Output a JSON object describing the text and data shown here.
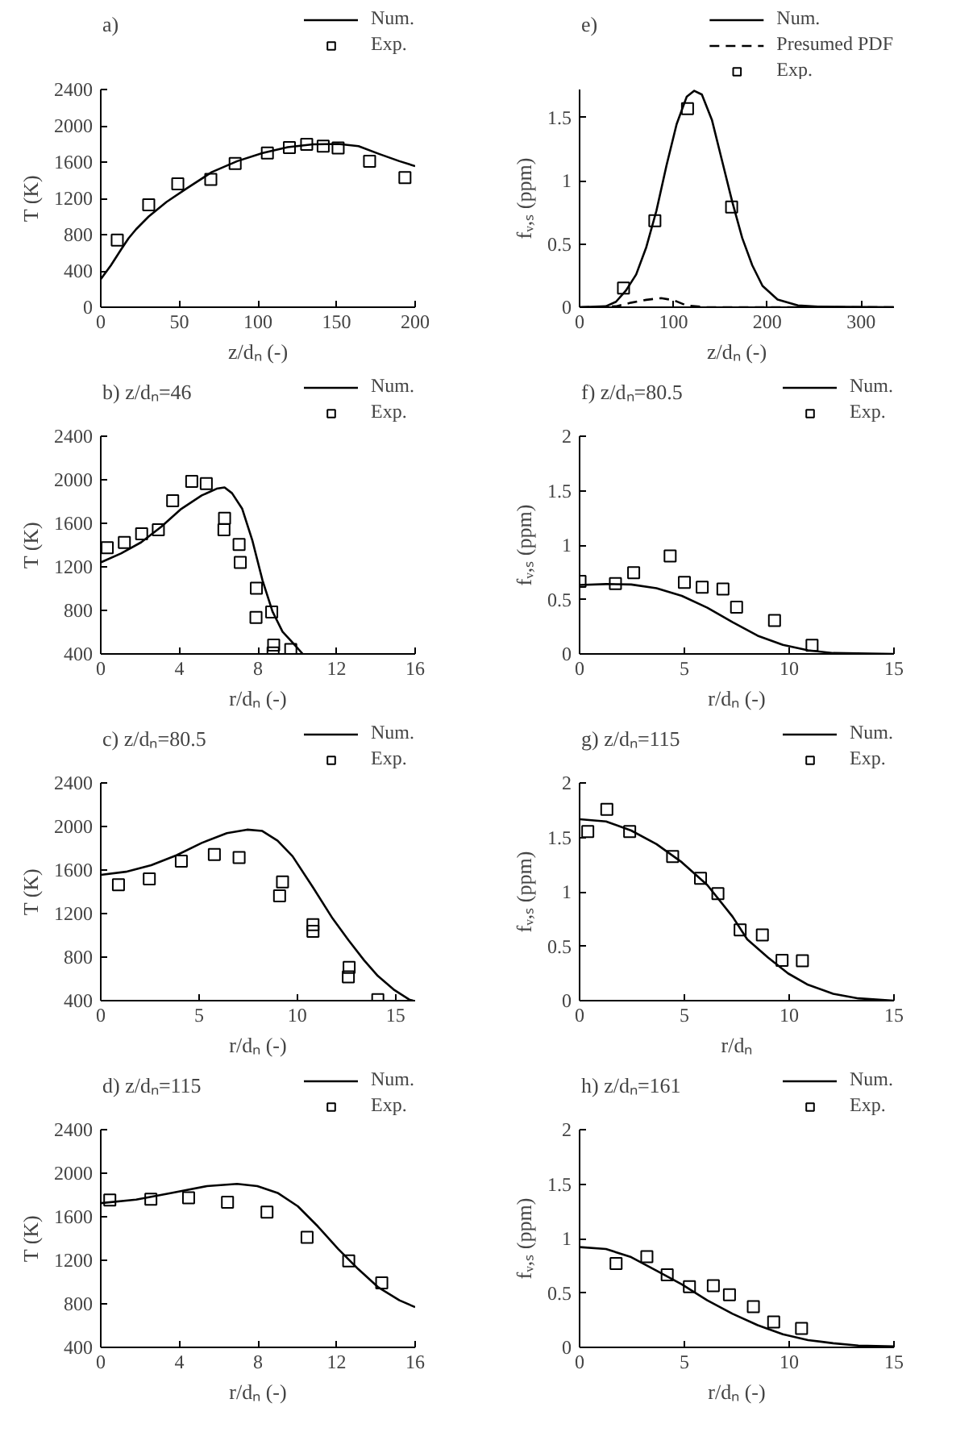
{
  "chart_data": [
    {
      "type": "line",
      "title": "a)",
      "xlabel": "z/dₙ (-)",
      "ylabel": "T (K)",
      "xlim": [
        0,
        200
      ],
      "xticks": [
        0,
        50,
        100,
        150,
        200
      ],
      "ylim": [
        0,
        2400
      ],
      "yticks": [
        0,
        400,
        800,
        1200,
        1600,
        2000,
        2400
      ],
      "grid": false,
      "legend": "top right",
      "series": [
        {
          "name": "Num.",
          "type": "line",
          "color": "#000000",
          "line_style": "solid",
          "x": [
            0,
            6.4,
            12.9,
            17.7,
            22.5,
            30.5,
            41.8,
            54.7,
            70.7,
            86.8,
            103,
            119,
            135,
            151,
            164,
            177,
            190,
            200
          ],
          "values": [
            310,
            460,
            635,
            760,
            860,
            1000,
            1160,
            1310,
            1490,
            1610,
            1700,
            1765,
            1795,
            1800,
            1775,
            1690,
            1610,
            1555
          ]
        },
        {
          "name": "Exp.",
          "type": "scatter",
          "color": "#000000",
          "marker": "square",
          "x": [
            10.5,
            30.5,
            49,
            70,
            85.5,
            106,
            120,
            131,
            141.5,
            151,
            171,
            193.5
          ],
          "values": [
            740,
            1130,
            1360,
            1410,
            1585,
            1700,
            1760,
            1795,
            1775,
            1755,
            1610,
            1430
          ]
        }
      ]
    },
    {
      "type": "line",
      "title": "b)   z/dₙ=46",
      "xlabel": "r/dₙ (-)",
      "ylabel": "T (K)",
      "xlim": [
        0,
        16
      ],
      "xticks": [
        0,
        4,
        8,
        12,
        16
      ],
      "ylim": [
        400,
        2400
      ],
      "yticks": [
        400,
        800,
        1200,
        1600,
        2000,
        2400
      ],
      "grid": false,
      "legend": "top right",
      "series": [
        {
          "name": "Num.",
          "type": "line",
          "color": "#000000",
          "line_style": "solid",
          "x": [
            0,
            1.03,
            2.06,
            3.08,
            4.1,
            5.14,
            5.9,
            6.3,
            6.68,
            7.2,
            7.71,
            8.23,
            8.74,
            9.25,
            9.77,
            10.28
          ],
          "values": [
            1241,
            1323,
            1426,
            1569,
            1733,
            1856,
            1918,
            1930,
            1877,
            1733,
            1446,
            1077,
            790,
            605,
            503,
            400
          ]
        },
        {
          "name": "Exp.",
          "type": "scatter",
          "color": "#000000",
          "marker": "square",
          "x": [
            0.33,
            1.2,
            2.08,
            2.93,
            3.66,
            4.63,
            5.37,
            6.3,
            6.27,
            7.04,
            7.1,
            7.92,
            7.9,
            8.7,
            8.8,
            8.77,
            9.67
          ],
          "values": [
            1376,
            1425,
            1503,
            1540,
            1807,
            1985,
            1965,
            1647,
            1540,
            1405,
            1241,
            1003,
            736,
            786,
            482,
            410,
            441
          ]
        }
      ]
    },
    {
      "type": "line",
      "title": "c)   z/dₙ=80.5",
      "xlabel": "r/dₙ (-)",
      "ylabel": "T (K)",
      "xlim": [
        0,
        16
      ],
      "xticks": [
        0,
        5,
        10,
        15
      ],
      "ylim": [
        400,
        2400
      ],
      "yticks": [
        400,
        800,
        1200,
        1600,
        2000,
        2400
      ],
      "grid": false,
      "legend": "top right",
      "series": [
        {
          "name": "Num.",
          "type": "line",
          "color": "#000000",
          "line_style": "solid",
          "x": [
            0,
            1.28,
            2.57,
            3.85,
            5.14,
            6.42,
            7.45,
            8.22,
            9.0,
            9.76,
            10.8,
            11.8,
            12.6,
            13.4,
            14.1,
            14.9,
            15.7,
            15.9
          ],
          "values": [
            1555,
            1584,
            1645,
            1735,
            1849,
            1939,
            1971,
            1959,
            1869,
            1727,
            1441,
            1155,
            957,
            771,
            627,
            503,
            410,
            400
          ]
        },
        {
          "name": "Exp.",
          "type": "scatter",
          "color": "#000000",
          "marker": "square",
          "x": [
            0.9,
            2.47,
            4.1,
            5.78,
            7.04,
            9.25,
            9.1,
            10.8,
            10.8,
            12.64,
            12.6,
            14.1
          ],
          "values": [
            1465,
            1518,
            1682,
            1743,
            1714,
            1490,
            1363,
            1098,
            1037,
            705,
            618,
            410
          ]
        }
      ]
    },
    {
      "type": "line",
      "title": "d)   z/dₙ=115",
      "xlabel": "r/dₙ (-)",
      "ylabel": "T (K)",
      "xlim": [
        0,
        16
      ],
      "xticks": [
        0,
        4,
        8,
        12,
        16
      ],
      "ylim": [
        400,
        2400
      ],
      "yticks": [
        400,
        800,
        1200,
        1600,
        2000,
        2400
      ],
      "grid": false,
      "legend": "top right",
      "series": [
        {
          "name": "Num.",
          "type": "line",
          "color": "#000000",
          "line_style": "solid",
          "x": [
            0,
            1.8,
            3.6,
            5.4,
            6.94,
            7.97,
            9.0,
            10.03,
            11.05,
            12.08,
            13.1,
            14.1,
            15.2,
            16
          ],
          "values": [
            1725,
            1758,
            1819,
            1881,
            1902,
            1881,
            1819,
            1696,
            1511,
            1305,
            1120,
            955,
            832,
            770
          ]
        },
        {
          "name": "Exp.",
          "type": "scatter",
          "color": "#000000",
          "marker": "square",
          "x": [
            0.46,
            2.55,
            4.47,
            6.45,
            8.46,
            10.5,
            12.62,
            14.3
          ],
          "values": [
            1754,
            1762,
            1774,
            1733,
            1643,
            1412,
            1194,
            993
          ]
        }
      ]
    },
    {
      "type": "line",
      "title": "e)",
      "xlabel": "z/dₙ (-)",
      "ylabel": "fᵥ,ₛ (ppm)",
      "xlim": [
        0,
        335
      ],
      "xticks": [
        0,
        100,
        200,
        300
      ],
      "ylim": [
        0,
        1.72
      ],
      "yticks": [
        0,
        0.5,
        1,
        1.5
      ],
      "grid": false,
      "legend": "top right",
      "series": [
        {
          "name": "Num.",
          "type": "line",
          "color": "#000000",
          "line_style": "solid",
          "x": [
            0,
            28,
            38.8,
            49.5,
            60.3,
            71.1,
            81.9,
            92.6,
            103.4,
            114.1,
            122.2,
            130.3,
            141,
            151.8,
            162.6,
            173.3,
            184,
            194.9,
            211,
            232.6,
            254,
            335
          ],
          "values": [
            0,
            0.007,
            0.043,
            0.133,
            0.259,
            0.475,
            0.763,
            1.12,
            1.446,
            1.662,
            1.71,
            1.68,
            1.48,
            1.158,
            0.835,
            0.547,
            0.331,
            0.169,
            0.061,
            0.014,
            0.004,
            0
          ]
        },
        {
          "name": "Presumed PDF",
          "type": "line",
          "color": "#000000",
          "line_style": "dashed",
          "x": [
            0,
            38.8,
            55,
            71,
            87,
            100.7,
            114,
            135.7,
            335
          ],
          "values": [
            0,
            0.007,
            0.036,
            0.058,
            0.072,
            0.054,
            0.014,
            0,
            0
          ]
        },
        {
          "name": "Exp.",
          "type": "scatter",
          "color": "#000000",
          "marker": "square",
          "x": [
            46.8,
            80.2,
            115,
            162
          ],
          "values": [
            0.151,
            0.683,
            1.568,
            0.791
          ]
        }
      ]
    },
    {
      "type": "line",
      "title": "f)   z/dₙ=80.5",
      "xlabel": "r/dₙ (-)",
      "ylabel": "fᵥ,ₛ (ppm)",
      "xlim": [
        0,
        15
      ],
      "xticks": [
        0,
        5,
        10,
        15
      ],
      "ylim": [
        0,
        2
      ],
      "yticks": [
        0,
        0.5,
        1,
        1.5,
        2
      ],
      "grid": false,
      "legend": "top right",
      "series": [
        {
          "name": "Num.",
          "type": "line",
          "color": "#000000",
          "line_style": "solid",
          "x": [
            0,
            1.26,
            2.46,
            3.67,
            4.88,
            6.09,
            7.3,
            8.5,
            9.7,
            10.9,
            12.1,
            15
          ],
          "values": [
            0.633,
            0.642,
            0.638,
            0.604,
            0.533,
            0.425,
            0.292,
            0.167,
            0.083,
            0.033,
            0.008,
            0
          ]
        },
        {
          "name": "Exp.",
          "type": "scatter",
          "color": "#000000",
          "marker": "square",
          "x": [
            0.02,
            1.71,
            2.58,
            4.32,
            5.0,
            5.85,
            6.84,
            7.49,
            9.3,
            11.09
          ],
          "values": [
            0.667,
            0.646,
            0.746,
            0.9,
            0.658,
            0.613,
            0.596,
            0.429,
            0.308,
            0.079
          ]
        }
      ]
    },
    {
      "type": "line",
      "title": "g)   z/dₙ=115",
      "xlabel": "r/dₙ",
      "ylabel": "fᵥ,ₛ (ppm)",
      "xlim": [
        0,
        15
      ],
      "xticks": [
        0,
        5,
        10,
        15
      ],
      "ylim": [
        0,
        2
      ],
      "yticks": [
        0,
        0.5,
        1,
        1.5,
        2
      ],
      "grid": false,
      "legend": "top right",
      "series": [
        {
          "name": "Num.",
          "type": "line",
          "color": "#000000",
          "line_style": "solid",
          "x": [
            0,
            1.26,
            2.46,
            3.67,
            4.88,
            6.09,
            7.3,
            8.0,
            8.99,
            9.95,
            10.9,
            12.1,
            13.3,
            15
          ],
          "values": [
            1.667,
            1.646,
            1.563,
            1.438,
            1.271,
            1.063,
            0.771,
            0.563,
            0.396,
            0.25,
            0.146,
            0.063,
            0.021,
            0
          ]
        },
        {
          "name": "Exp.",
          "type": "scatter",
          "color": "#000000",
          "marker": "square",
          "x": [
            0.39,
            1.3,
            2.39,
            4.44,
            5.77,
            6.6,
            7.66,
            8.72,
            9.66,
            10.63
          ],
          "values": [
            1.554,
            1.758,
            1.554,
            1.325,
            1.125,
            0.983,
            0.65,
            0.604,
            0.371,
            0.367
          ]
        }
      ]
    },
    {
      "type": "line",
      "title": "h)   z/dₙ=161",
      "xlabel": "r/dₙ (-)",
      "ylabel": "fᵥ,ₛ (ppm)",
      "xlim": [
        0,
        15
      ],
      "xticks": [
        0,
        5,
        10,
        15
      ],
      "ylim": [
        0,
        2
      ],
      "yticks": [
        0,
        0.5,
        1,
        1.5,
        2
      ],
      "grid": false,
      "legend": "top right",
      "series": [
        {
          "name": "Num.",
          "type": "line",
          "color": "#000000",
          "line_style": "solid",
          "x": [
            0,
            1.26,
            2.46,
            3.67,
            4.88,
            6.09,
            7.3,
            8.5,
            9.7,
            10.9,
            12.1,
            13.3,
            15
          ],
          "values": [
            0.921,
            0.904,
            0.829,
            0.704,
            0.579,
            0.433,
            0.308,
            0.204,
            0.121,
            0.067,
            0.038,
            0.017,
            0.008
          ]
        },
        {
          "name": "Exp.",
          "type": "scatter",
          "color": "#000000",
          "marker": "square",
          "x": [
            1.74,
            3.21,
            4.18,
            5.24,
            6.38,
            7.15,
            8.29,
            9.26,
            10.59
          ],
          "values": [
            0.771,
            0.833,
            0.667,
            0.558,
            0.567,
            0.483,
            0.375,
            0.233,
            0.175
          ]
        }
      ]
    }
  ]
}
